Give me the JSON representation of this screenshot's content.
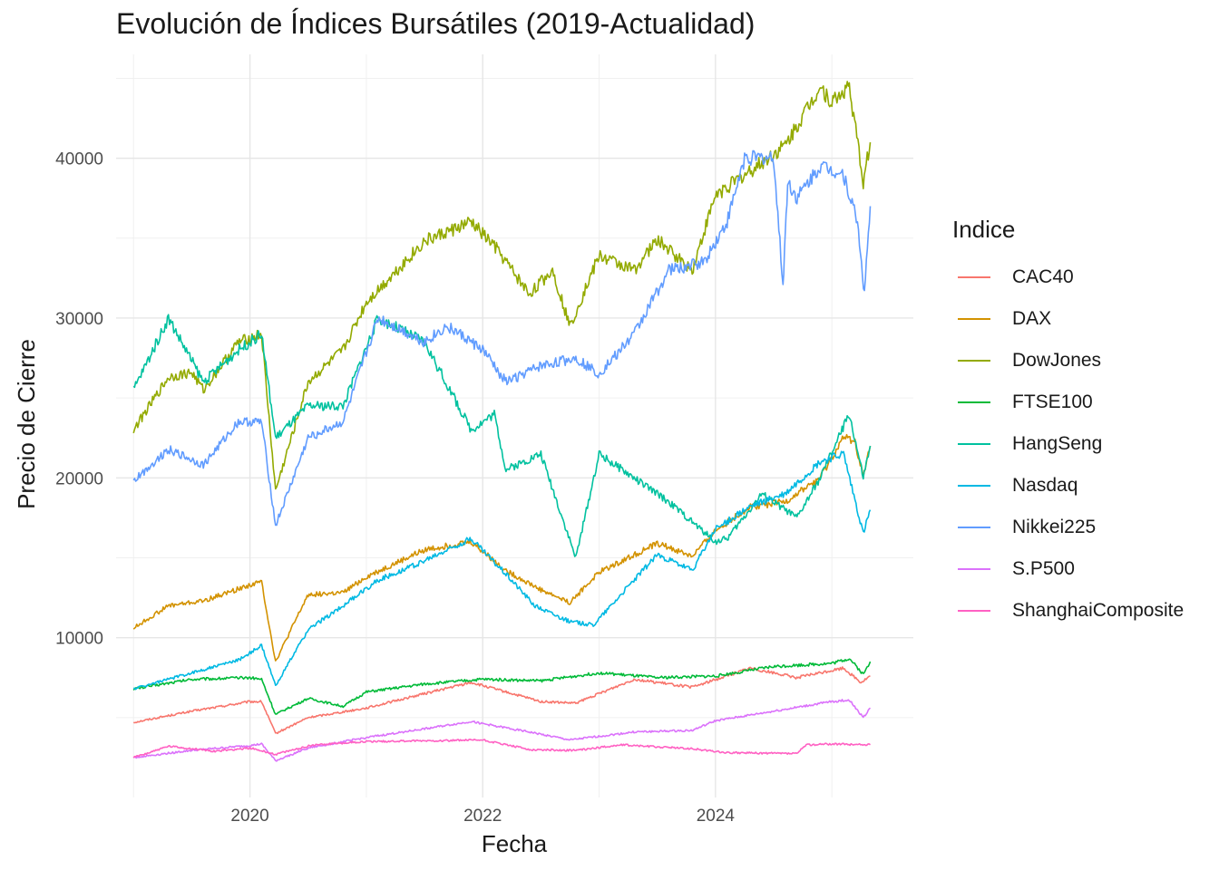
{
  "chart_data": {
    "type": "line",
    "title": "Evolución de Índices Bursátiles (2019-Actualidad)",
    "xlabel": "Fecha",
    "ylabel": "Precio de Cierre",
    "xlim": [
      2018.85,
      2025.7
    ],
    "ylim": [
      0,
      46500
    ],
    "x_ticks": [
      2020,
      2022,
      2024
    ],
    "y_ticks": [
      10000,
      20000,
      30000,
      40000
    ],
    "grid": true,
    "legend": {
      "title": "Indice",
      "position": "right"
    },
    "series": [
      {
        "name": "CAC40",
        "color": "#F8766D",
        "x": [
          2019.0,
          2019.5,
          2020.0,
          2020.1,
          2020.22,
          2020.5,
          2021.0,
          2021.5,
          2021.9,
          2022.5,
          2022.8,
          2023.3,
          2023.8,
          2024.3,
          2024.7,
          2025.1,
          2025.25,
          2025.33
        ],
        "y": [
          4700,
          5400,
          6000,
          6000,
          4000,
          5000,
          5600,
          6500,
          7200,
          6000,
          5900,
          7400,
          6900,
          8100,
          7500,
          8100,
          7200,
          7600
        ]
      },
      {
        "name": "DAX",
        "color": "#D39200",
        "x": [
          2019.0,
          2019.3,
          2019.6,
          2020.0,
          2020.1,
          2020.22,
          2020.5,
          2020.8,
          2021.0,
          2021.5,
          2021.9,
          2022.2,
          2022.5,
          2022.75,
          2023.0,
          2023.5,
          2023.8,
          2024.0,
          2024.3,
          2024.6,
          2024.9,
          2025.1,
          2025.2,
          2025.27,
          2025.33
        ],
        "y": [
          10600,
          12000,
          12300,
          13300,
          13500,
          8500,
          12700,
          12800,
          13800,
          15500,
          16000,
          14200,
          13000,
          12200,
          14100,
          15900,
          15100,
          16700,
          18200,
          18500,
          20000,
          22500,
          22300,
          20000,
          22000
        ]
      },
      {
        "name": "DowJones",
        "color": "#93AA00",
        "x": [
          2019.0,
          2019.3,
          2019.5,
          2019.6,
          2019.9,
          2020.1,
          2020.22,
          2020.5,
          2020.8,
          2021.0,
          2021.5,
          2021.9,
          2022.1,
          2022.4,
          2022.6,
          2022.75,
          2023.0,
          2023.3,
          2023.5,
          2023.8,
          2024.0,
          2024.3,
          2024.6,
          2024.9,
          2025.0,
          2025.15,
          2025.27,
          2025.33
        ],
        "y": [
          23000,
          26300,
          26600,
          25500,
          28500,
          29000,
          19200,
          26000,
          28000,
          31000,
          34800,
          36000,
          34500,
          31500,
          33000,
          29500,
          33900,
          33000,
          34900,
          33000,
          37700,
          39200,
          40800,
          44500,
          43500,
          44500,
          38500,
          41000
        ]
      },
      {
        "name": "FTSE100",
        "color": "#00BA38",
        "x": [
          2019.0,
          2019.5,
          2020.0,
          2020.1,
          2020.22,
          2020.5,
          2020.8,
          2021.0,
          2021.5,
          2022.0,
          2022.5,
          2023.0,
          2023.5,
          2024.0,
          2024.5,
          2025.0,
          2025.15,
          2025.27,
          2025.33
        ],
        "y": [
          6800,
          7400,
          7500,
          7400,
          5200,
          6200,
          5700,
          6600,
          7100,
          7400,
          7300,
          7800,
          7500,
          7600,
          8200,
          8400,
          8700,
          7700,
          8500
        ]
      },
      {
        "name": "HangSeng",
        "color": "#00C19F",
        "x": [
          2019.0,
          2019.3,
          2019.6,
          2019.9,
          2020.1,
          2020.22,
          2020.5,
          2020.8,
          2021.1,
          2021.5,
          2021.9,
          2022.1,
          2022.2,
          2022.5,
          2022.8,
          2023.0,
          2023.3,
          2023.6,
          2024.0,
          2024.1,
          2024.4,
          2024.7,
          2024.9,
          2025.15,
          2025.27,
          2025.33
        ],
        "y": [
          25500,
          30000,
          26000,
          28000,
          29000,
          22500,
          24500,
          24500,
          30000,
          28500,
          23000,
          24000,
          20500,
          21500,
          15000,
          21500,
          20000,
          18500,
          16000,
          16200,
          19000,
          17500,
          20000,
          24000,
          20000,
          22000
        ]
      },
      {
        "name": "Nasdaq",
        "color": "#00B9E3",
        "x": [
          2019.0,
          2019.5,
          2019.9,
          2020.1,
          2020.22,
          2020.5,
          2020.8,
          2021.1,
          2021.5,
          2021.9,
          2022.2,
          2022.45,
          2022.75,
          2022.95,
          2023.5,
          2023.8,
          2024.0,
          2024.3,
          2024.6,
          2024.9,
          2025.1,
          2025.27,
          2025.33
        ],
        "y": [
          6800,
          7800,
          8600,
          9500,
          7000,
          10500,
          12000,
          13600,
          14800,
          16200,
          14000,
          12000,
          11000,
          10800,
          15200,
          14200,
          16800,
          18200,
          19000,
          21000,
          21500,
          16500,
          18000
        ]
      },
      {
        "name": "Nikkei225",
        "color": "#619CFF",
        "x": [
          2019.0,
          2019.3,
          2019.6,
          2019.9,
          2020.1,
          2020.22,
          2020.5,
          2020.8,
          2021.1,
          2021.5,
          2021.7,
          2022.0,
          2022.2,
          2022.5,
          2022.8,
          2023.0,
          2023.3,
          2023.6,
          2023.9,
          2024.1,
          2024.25,
          2024.5,
          2024.58,
          2024.62,
          2024.7,
          2024.9,
          2025.1,
          2025.22,
          2025.28,
          2025.33
        ],
        "y": [
          19800,
          21800,
          20800,
          23500,
          23500,
          17000,
          22500,
          23500,
          30000,
          28500,
          29500,
          28000,
          26000,
          27000,
          27500,
          26500,
          29000,
          33000,
          33500,
          36000,
          40000,
          40000,
          32000,
          38500,
          37500,
          39500,
          39000,
          36000,
          31500,
          37000
        ]
      },
      {
        "name": "S.P500",
        "color": "#DB72FB",
        "x": [
          2019.0,
          2019.5,
          2020.0,
          2020.1,
          2020.22,
          2020.5,
          2021.0,
          2021.5,
          2021.9,
          2022.4,
          2022.75,
          2023.3,
          2023.8,
          2024.0,
          2024.5,
          2025.0,
          2025.15,
          2025.27,
          2025.33
        ],
        "y": [
          2500,
          2950,
          3250,
          3350,
          2300,
          3100,
          3750,
          4300,
          4750,
          4100,
          3600,
          4100,
          4200,
          4800,
          5400,
          6000,
          6100,
          5000,
          5600
        ]
      },
      {
        "name": "ShanghaiComposite",
        "color": "#FF61C3",
        "x": [
          2019.0,
          2019.3,
          2019.7,
          2020.0,
          2020.22,
          2020.55,
          2021.0,
          2021.5,
          2022.0,
          2022.4,
          2022.8,
          2023.2,
          2023.8,
          2024.1,
          2024.7,
          2024.78,
          2025.0,
          2025.33
        ],
        "y": [
          2500,
          3200,
          2900,
          3100,
          2700,
          3300,
          3500,
          3550,
          3600,
          3000,
          2950,
          3300,
          3050,
          2800,
          2750,
          3300,
          3350,
          3300
        ]
      }
    ]
  }
}
